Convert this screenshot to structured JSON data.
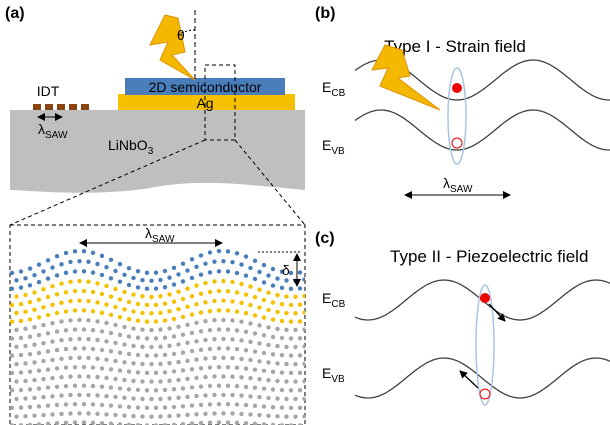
{
  "panel_a": {
    "label": "(a)",
    "theta": "θ",
    "idt": "IDT",
    "lambda_idt": {
      "main": "λ",
      "sub": "SAW"
    },
    "semiconductor": "2D semiconductor",
    "metal": "Ag",
    "substrate": {
      "main": "LiNbO",
      "sub": "3"
    },
    "lambda_zoom": {
      "main": "λ",
      "sub": "SAW"
    },
    "delta": "δ"
  },
  "panel_b": {
    "label": "(b)",
    "title": "Type I - Strain field",
    "cb": {
      "main": "E",
      "sub": "CB"
    },
    "vb": {
      "main": "E",
      "sub": "VB"
    },
    "lambda": {
      "main": "λ",
      "sub": "SAW"
    }
  },
  "panel_c": {
    "label": "(c)",
    "title": "Type II - Piezoelectric field",
    "cb": {
      "main": "E",
      "sub": "CB"
    },
    "vb": {
      "main": "E",
      "sub": "VB"
    }
  }
}
